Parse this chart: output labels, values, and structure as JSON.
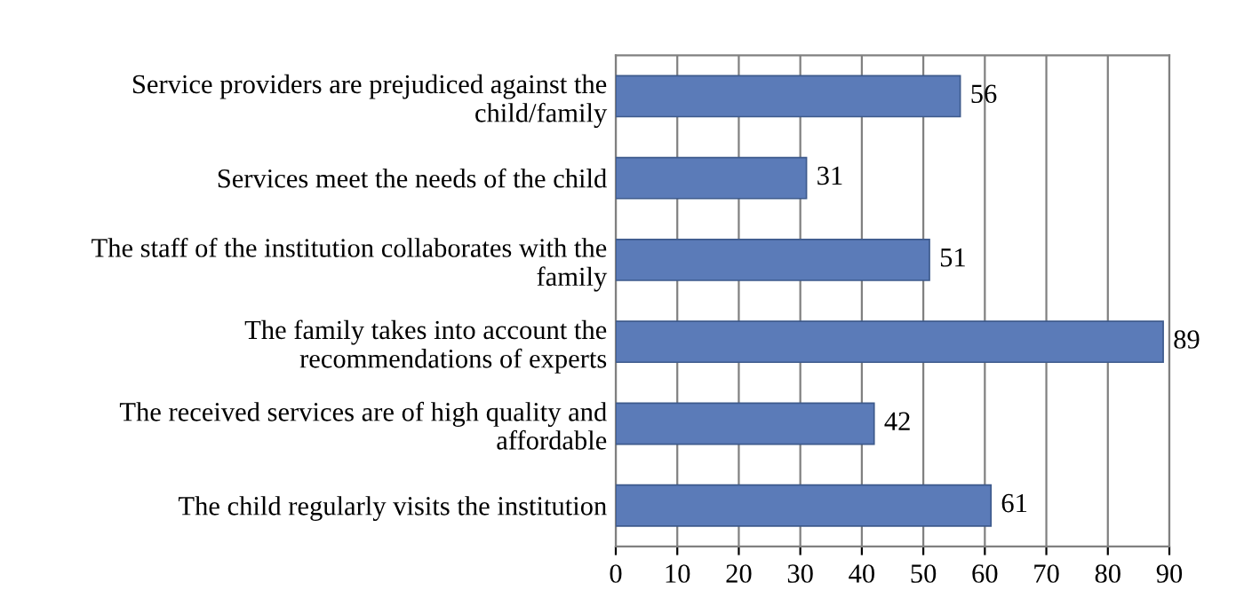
{
  "chart_data": {
    "type": "bar",
    "orientation": "horizontal",
    "categories": [
      "Service providers are prejudiced against the\nchild/family",
      "Services meet the needs of the child",
      "The staff of the institution collaborates with the\nfamily",
      "The family takes into account the\nrecommendations of experts",
      "The received services are of high quality and\naffordable",
      "The child regularly visits the institution"
    ],
    "values": [
      56,
      31,
      51,
      89,
      42,
      61
    ],
    "color": "#5b7bb8",
    "xlim": [
      0,
      90
    ],
    "xticks": [
      0,
      10,
      20,
      30,
      40,
      50,
      60,
      70,
      80,
      90
    ],
    "grid": "x",
    "data_labels": true
  }
}
